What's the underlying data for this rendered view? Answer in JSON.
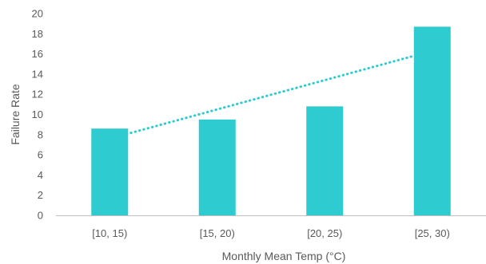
{
  "chart_data": {
    "type": "bar",
    "title": "",
    "xlabel": "Monthly Mean Temp (°C)",
    "ylabel": "Failure Rate",
    "categories": [
      "[10, 15)",
      "[15, 20)",
      "[20, 25)",
      "[25, 30)"
    ],
    "values": [
      8.6,
      9.5,
      10.8,
      18.7
    ],
    "ylim": [
      0,
      20
    ],
    "yticks": [
      0,
      2,
      4,
      6,
      8,
      10,
      12,
      14,
      16,
      18,
      20
    ],
    "trendline": {
      "type": "linear",
      "style": "dotted",
      "values": [
        7.6,
        10.5,
        13.4,
        16.3
      ]
    },
    "grid": false,
    "legend": "none",
    "colors": {
      "bar": "#2ECBD1",
      "trend": "#2ECBD1",
      "axis": "#BFBFBF",
      "text": "#595959"
    }
  }
}
